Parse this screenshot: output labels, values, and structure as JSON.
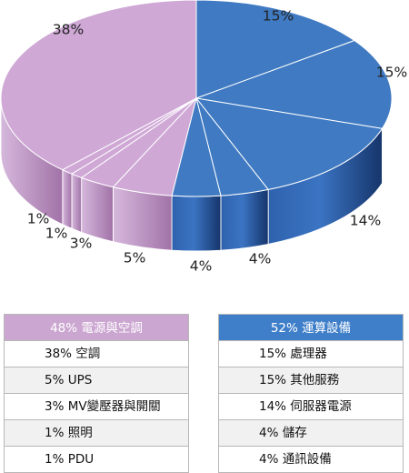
{
  "colors": {
    "pink_top": "#cfa8d6",
    "pink_side_dark": "#a67aab",
    "pink_side_light": "#d3b3d9",
    "blue_top": "#3f7ac2",
    "blue_side_dark": "#1c3f7c",
    "blue_side_light": "#3a72c2",
    "separator": "#ffffff"
  },
  "chart_data": {
    "type": "pie",
    "slices": [
      {
        "label": "15%",
        "value": 15,
        "group": "blue"
      },
      {
        "label": "15%",
        "value": 15,
        "group": "blue"
      },
      {
        "label": "14%",
        "value": 14,
        "group": "blue"
      },
      {
        "label": "4%",
        "value": 4,
        "group": "blue"
      },
      {
        "label": "4%",
        "value": 4,
        "group": "blue"
      },
      {
        "label": "5%",
        "value": 5,
        "group": "pink"
      },
      {
        "label": "3%",
        "value": 3,
        "group": "pink"
      },
      {
        "label": "1%",
        "value": 1,
        "group": "pink"
      },
      {
        "label": "1%",
        "value": 1,
        "group": "pink"
      },
      {
        "label": "38%",
        "value": 38,
        "group": "pink"
      }
    ]
  },
  "legend_left": {
    "header": "48% 電源與空調",
    "items": [
      "38% 空調",
      "5% UPS",
      "3% MV變壓器與開關",
      "1% 照明",
      "1% PDU"
    ]
  },
  "legend_right": {
    "header": "52% 運算設備",
    "items": [
      "15% 處理器",
      "15% 其他服務",
      "14% 伺服器電源",
      "4% 儲存",
      "4% 通訊設備"
    ]
  }
}
